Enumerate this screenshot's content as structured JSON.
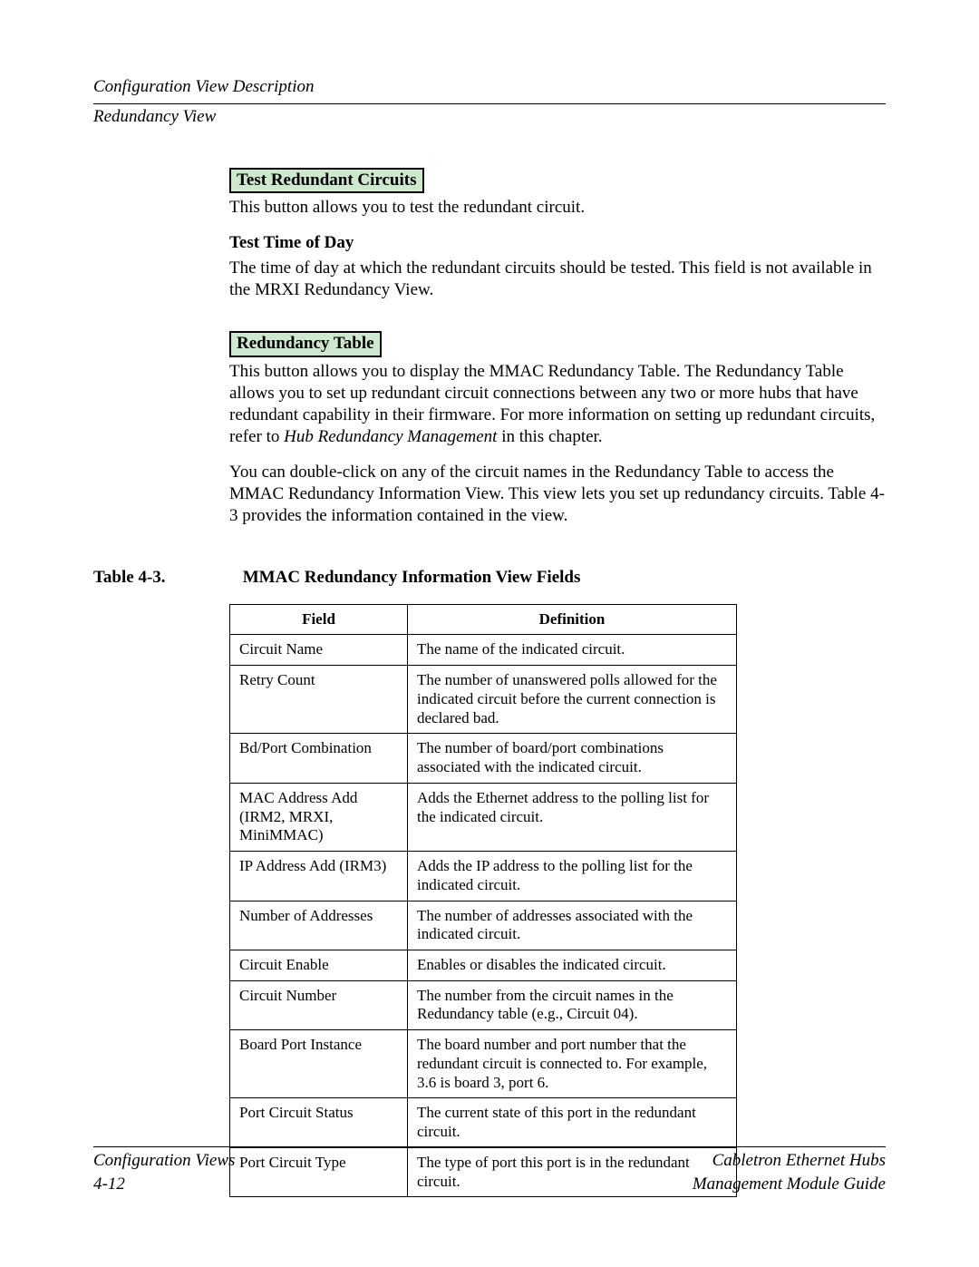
{
  "header": {
    "section": "Configuration View Description",
    "subsection": "Redundancy View"
  },
  "buttons": {
    "test_redundant_circuits": "Test Redundant Circuits",
    "redundancy_table": "Redundancy Table"
  },
  "body": {
    "trc_desc": "This button allows you to test the redundant circuit.",
    "ttod_head": "Test Time of Day",
    "ttod_desc": "The time of day at which the redundant circuits should be tested. This field is not available in the MRXI Redundancy View.",
    "rt_desc_1a": "This button allows you to display the MMAC Redundancy Table. The Redundancy Table allows you to set up redundant circuit connections between any two or more hubs that have redundant capability in their firmware. For more information on setting up redundant circuits, refer to ",
    "rt_desc_1b_italic": "Hub Redundancy Management",
    "rt_desc_1c": " in this chapter.",
    "rt_desc_2": "You can double-click on any of the circuit names in the Redundancy Table to access the MMAC Redundancy Information View. This view lets you set up redundancy circuits. Table 4-3 provides the information contained in the view."
  },
  "table": {
    "label": "Table 4-3.",
    "title": "MMAC Redundancy Information View Fields",
    "columns": [
      "Field",
      "Definition"
    ],
    "rows": [
      [
        "Circuit Name",
        "The name of the indicated circuit."
      ],
      [
        "Retry Count",
        "The number of unanswered polls allowed for the indicated circuit before the current connection is declared bad."
      ],
      [
        "Bd/Port Combination",
        "The number of board/port combinations associated with the indicated circuit."
      ],
      [
        "MAC Address Add (IRM2, MRXI, MiniMMAC)",
        "Adds the Ethernet address to the polling list for the indicated circuit."
      ],
      [
        "IP Address Add (IRM3)",
        "Adds the IP address to the polling list for the indicated circuit."
      ],
      [
        "Number of Addresses",
        "The number of addresses associated with the indicated circuit."
      ],
      [
        "Circuit Enable",
        "Enables or disables the indicated circuit."
      ],
      [
        "Circuit Number",
        "The number from the circuit names in the Redundancy table (e.g., Circuit 04)."
      ],
      [
        "Board Port Instance",
        "The board number and port number that the redundant circuit is connected to. For example, 3.6 is board 3, port 6."
      ],
      [
        "Port Circuit Status",
        "The current state of this port in the redundant circuit."
      ],
      [
        "Port Circuit Type",
        "The type of port this port is in the redundant circuit."
      ]
    ]
  },
  "footer": {
    "left1": "Configuration Views",
    "left2": "4-12",
    "right1": "Cabletron Ethernet Hubs",
    "right2": "Management Module Guide"
  },
  "style": {
    "button_bg": "#cde8cf",
    "col1_width": 175,
    "col2_width": 385
  }
}
